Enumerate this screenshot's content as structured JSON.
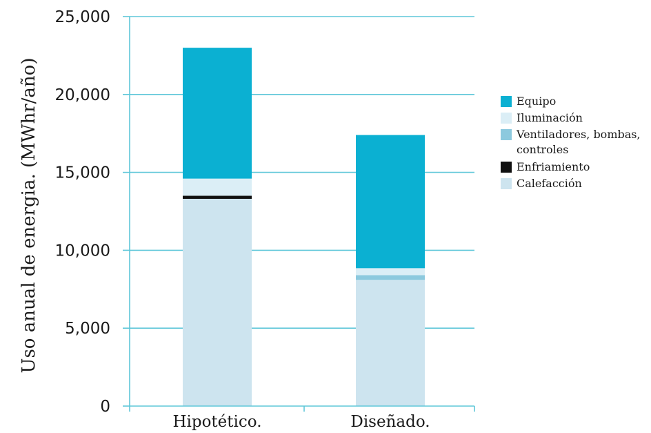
{
  "chart_data": {
    "type": "bar",
    "stacked": true,
    "title": "",
    "xlabel": "",
    "ylabel": "Uso anual de energia. (MWhr/año)",
    "ylim": [
      0,
      25000
    ],
    "yticks": [
      0,
      5000,
      10000,
      15000,
      20000,
      25000
    ],
    "ytick_labels": [
      "0",
      "5,000",
      "10,000",
      "15,000",
      "20,000",
      "25,000"
    ],
    "grid": true,
    "legend_position": "right",
    "categories": [
      "Hipotético.",
      "Diseñado."
    ],
    "series": [
      {
        "name": "Calefacción",
        "color": "#cde4ef",
        "values": [
          13300,
          8100
        ]
      },
      {
        "name": "Enfriamiento",
        "color": "#111111",
        "values": [
          200,
          0
        ]
      },
      {
        "name": "Ventiladores, bombas, controles",
        "color": "#8cc9de",
        "values": [
          0,
          300
        ]
      },
      {
        "name": "Iluminación",
        "color": "#dbeef6",
        "values": [
          1100,
          450
        ]
      },
      {
        "name": "Equipo",
        "color": "#0bb0d2",
        "values": [
          8400,
          8550
        ]
      }
    ],
    "legend": [
      {
        "label": "Equipo",
        "color": "#0bb0d2"
      },
      {
        "label": "Iluminación",
        "color": "#dbeef6"
      },
      {
        "label": "Ventiladores, bombas,",
        "label2": "controles",
        "color": "#8cc9de"
      },
      {
        "label": "Enfriamiento",
        "color": "#111111"
      },
      {
        "label": "Calefacción",
        "color": "#cde4ef"
      }
    ],
    "colors": {
      "grid": "#5fc7d9",
      "axis": "#5fc7d9"
    }
  }
}
